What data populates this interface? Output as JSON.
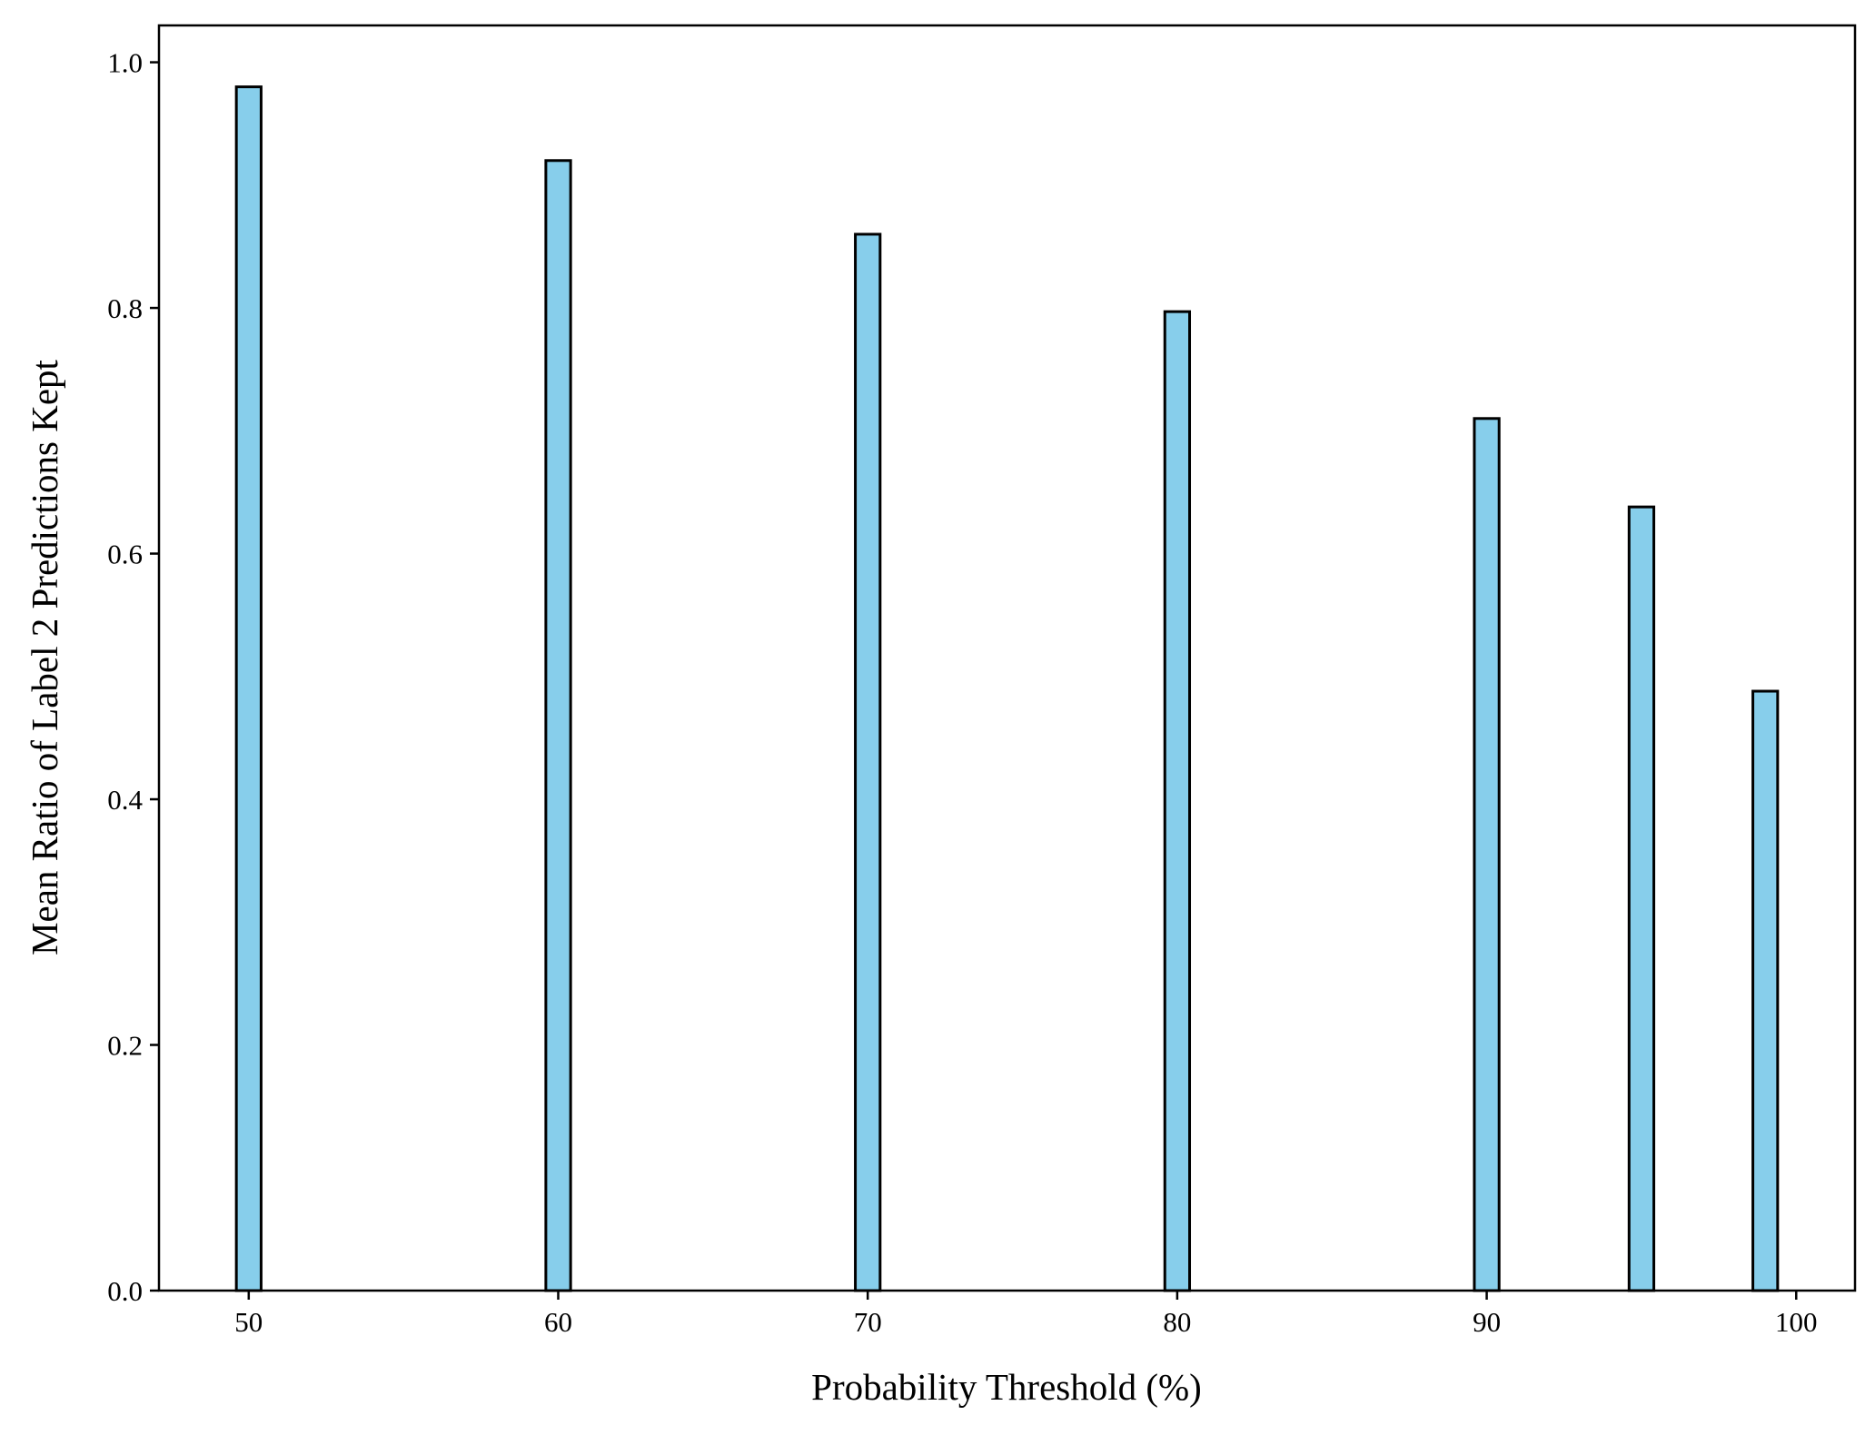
{
  "chart_data": {
    "type": "bar",
    "title": "",
    "xlabel": "Probability Threshold (%)",
    "ylabel": "Mean Ratio of Label 2 Predictions Kept",
    "x": [
      50,
      60,
      70,
      80,
      90,
      95,
      99
    ],
    "values": [
      0.98,
      0.92,
      0.86,
      0.797,
      0.71,
      0.638,
      0.488
    ],
    "bar_width": 0.8,
    "xlim": [
      47.1,
      101.9
    ],
    "ylim": [
      0,
      1.03
    ],
    "xticks": [
      50,
      60,
      70,
      80,
      90,
      100
    ],
    "xtick_labels": [
      "50",
      "60",
      "70",
      "80",
      "90",
      "100"
    ],
    "yticks": [
      0.0,
      0.2,
      0.4,
      0.6,
      0.8,
      1.0
    ],
    "ytick_labels": [
      "0.0",
      "0.2",
      "0.4",
      "0.6",
      "0.8",
      "1.0"
    ],
    "grid": false,
    "legend": "none",
    "colors": {
      "bar_fill": "#87CEEB",
      "bar_edge": "#000000",
      "axes": "#000000",
      "background": "#FFFFFF"
    }
  }
}
